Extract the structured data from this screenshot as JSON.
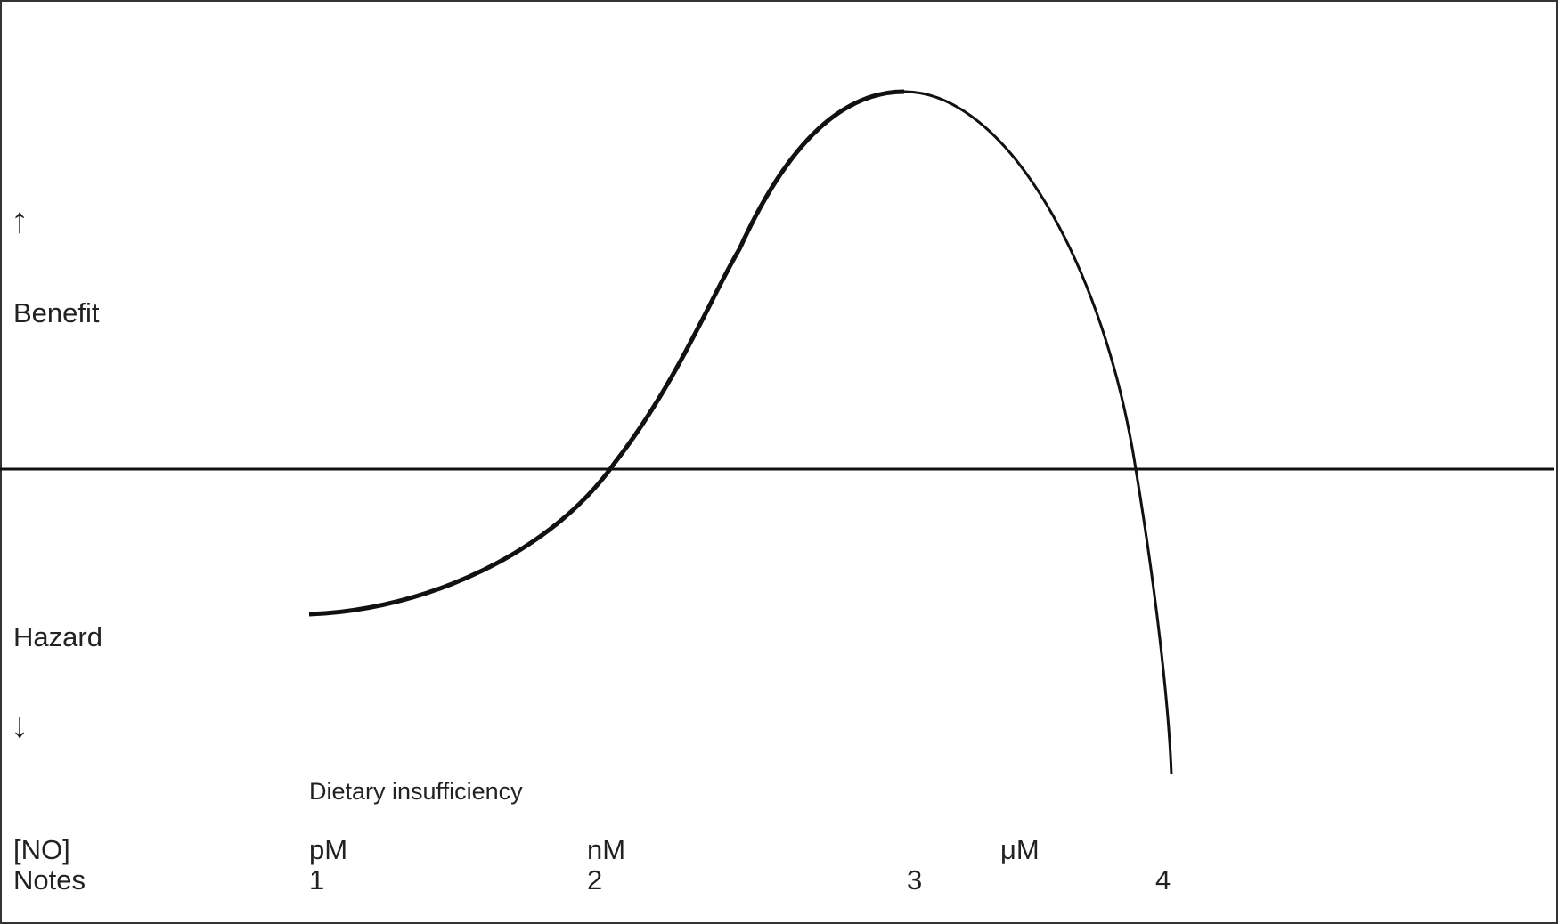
{
  "axis": {
    "up_arrow": "↑",
    "down_arrow": "↓",
    "benefit_label": "Benefit",
    "hazard_label": "Hazard"
  },
  "annotation": {
    "dietary": "Dietary insufficiency"
  },
  "rows": {
    "concentration_label": "[NO]",
    "notes_label": "Notes",
    "concentrations": [
      "pM",
      "nM",
      "μM"
    ],
    "notes": [
      "1",
      "2",
      "3",
      "4"
    ]
  },
  "colors": {
    "curve": "#111111",
    "text": "#222222",
    "border": "#333333"
  }
}
